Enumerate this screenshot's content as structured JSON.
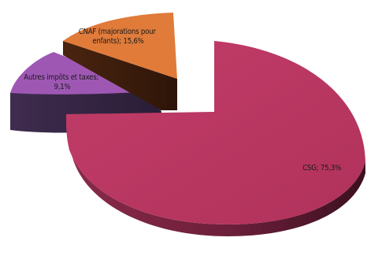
{
  "chart_data": {
    "type": "pie",
    "style": "3d-exploded",
    "slices": [
      {
        "name": "CSG",
        "value": 75.3,
        "label": "CSG; 75,3%",
        "color": "#b8345f"
      },
      {
        "name": "CNAF (majorations pour enfants)",
        "value": 15.6,
        "label_lines": [
          "CNAF (majorations pour",
          "enfants); 15,6%"
        ],
        "color": "#e07b3a"
      },
      {
        "name": "Autres impôts et taxes",
        "value": 9.1,
        "label_lines": [
          "Autres impôts et taxes;",
          "9,1%"
        ],
        "color": "#9e58b4"
      }
    ]
  }
}
